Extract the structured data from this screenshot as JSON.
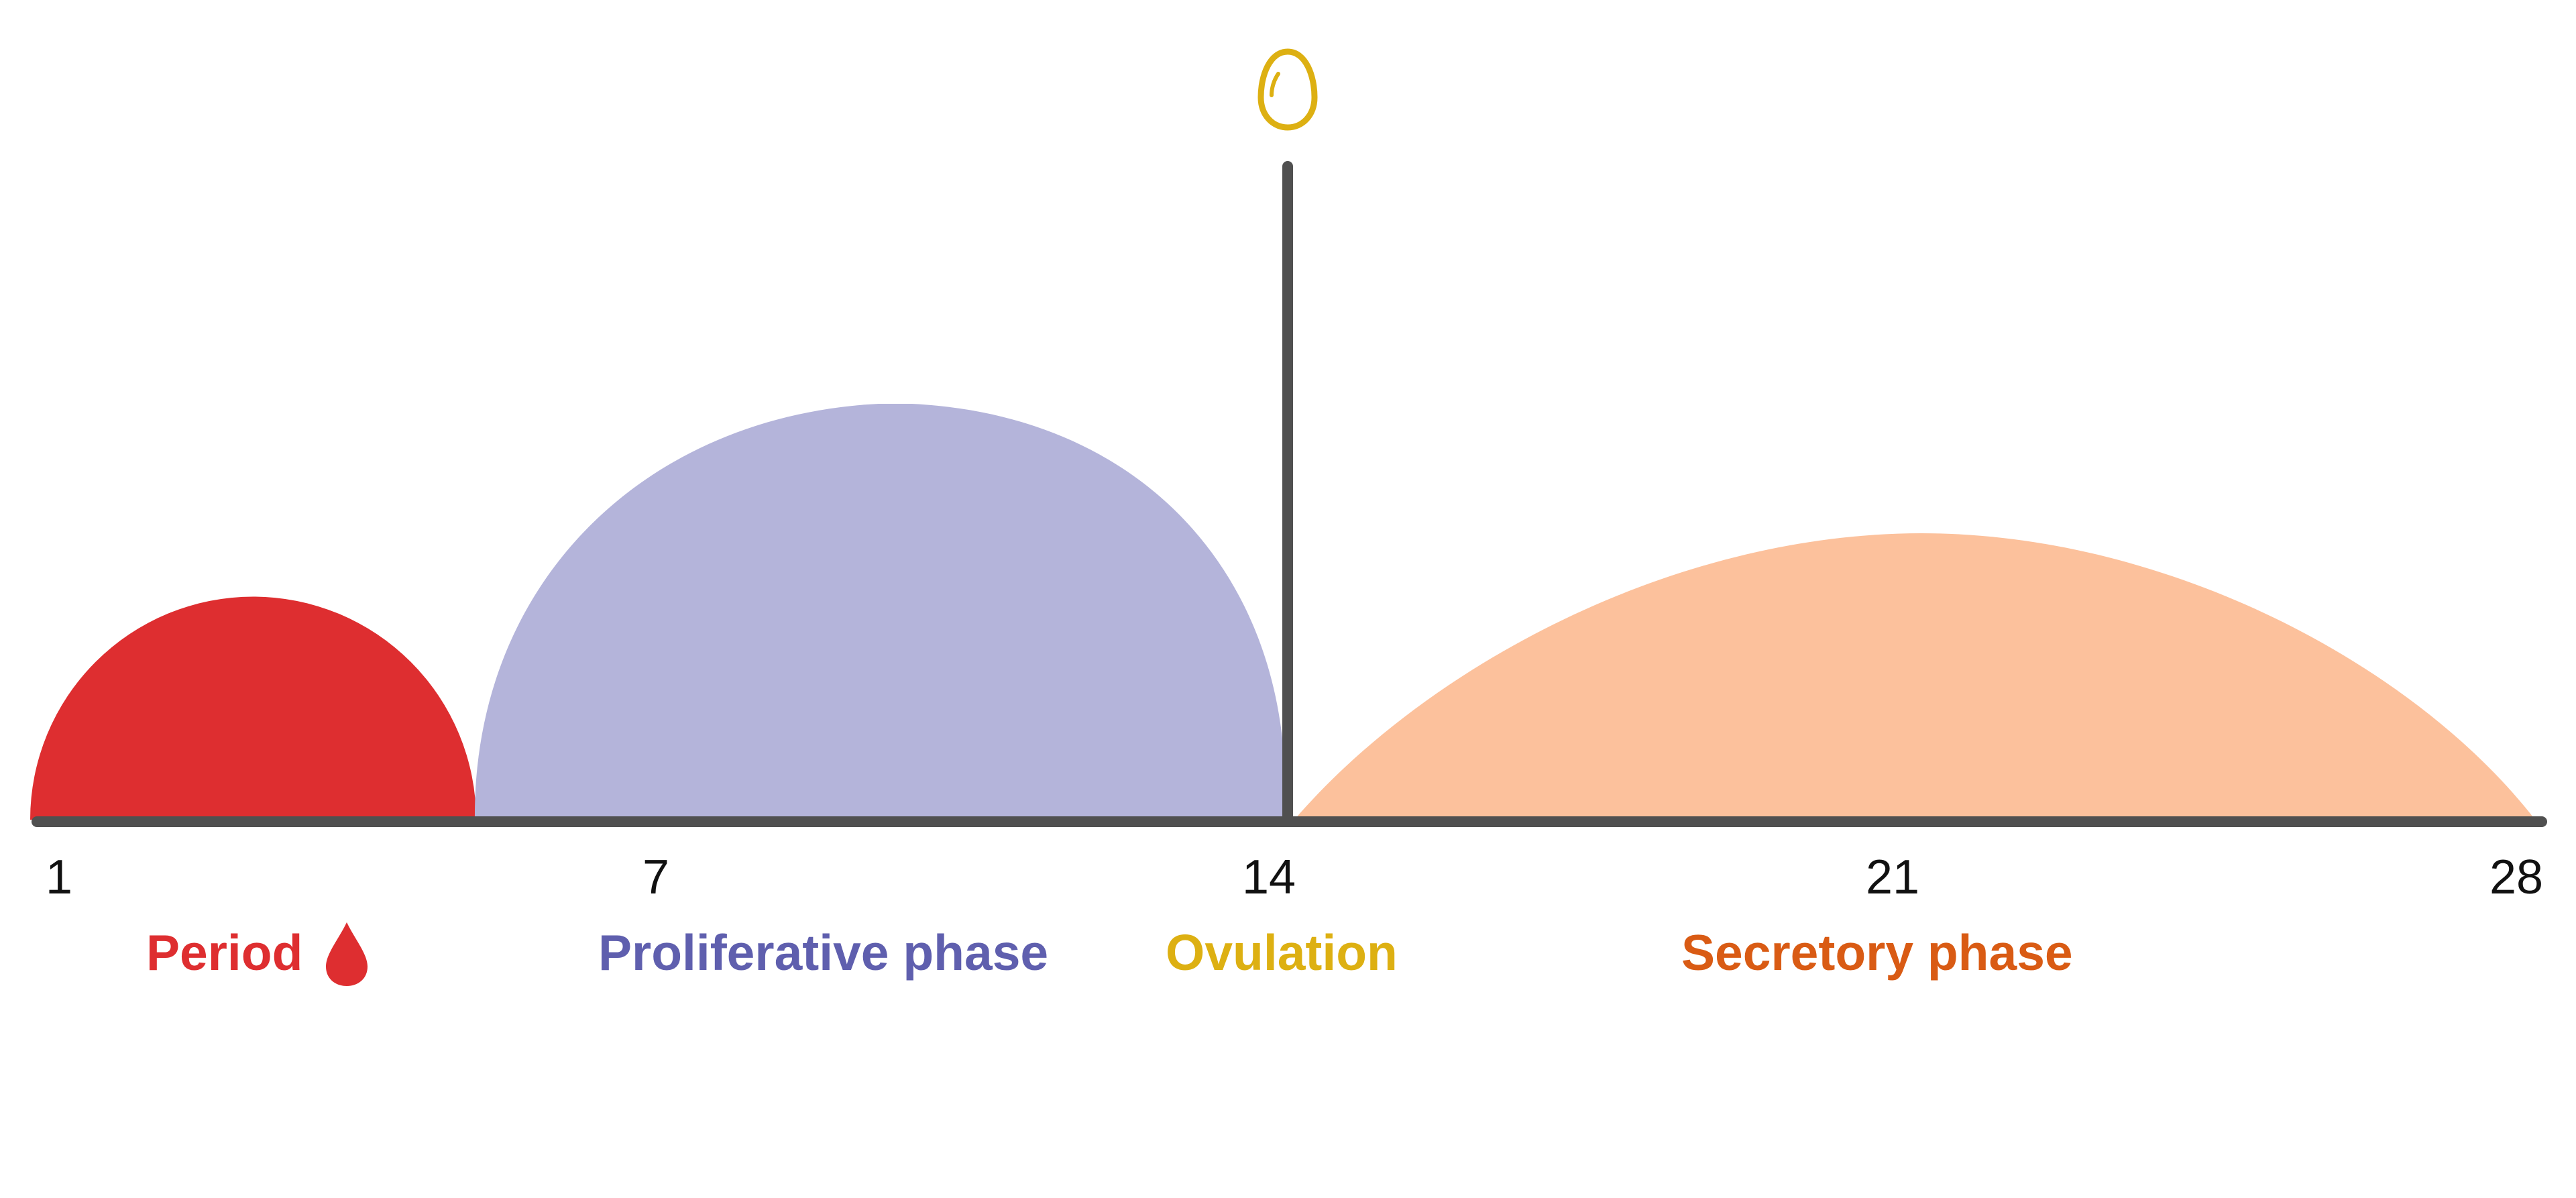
{
  "ticks": [
    "1",
    "7",
    "14",
    "21",
    "28"
  ],
  "phases": {
    "period": {
      "label": "Period",
      "color": "#DE2E30"
    },
    "proliferative": {
      "label": "Proliferative phase",
      "color": "#5F5FAE",
      "fill": "#B4B4DA"
    },
    "ovulation": {
      "label": "Ovulation",
      "color": "#DDB012"
    },
    "secretory": {
      "label": "Secretory phase",
      "color": "#D95B14",
      "fill": "#FCC19C"
    }
  },
  "axis_color": "#505050",
  "icons": {
    "egg": "egg-icon",
    "drop": "blood-drop-icon"
  }
}
